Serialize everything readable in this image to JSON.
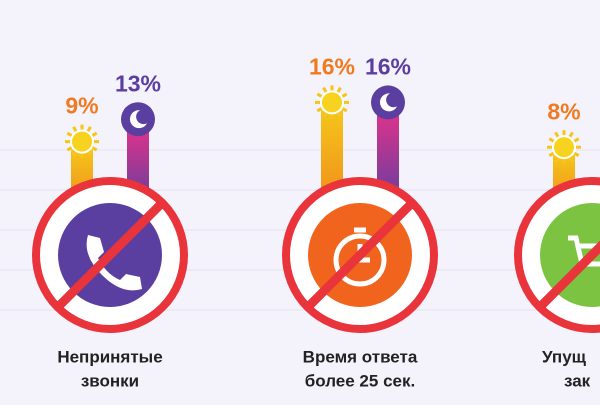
{
  "chart_data": {
    "type": "bar",
    "categories": [
      [
        "Непринятые",
        "звонки"
      ],
      [
        "Время ответа",
        "более 25 сек."
      ],
      [
        "Упущ",
        "зак"
      ]
    ],
    "series": [
      {
        "color": "#f07a20",
        "values": [
          9,
          16,
          8
        ],
        "value_labels": [
          "9%",
          "16%",
          "8%"
        ]
      },
      {
        "color": "#5b3fa0",
        "values": [
          13,
          16,
          null
        ],
        "value_labels": [
          "13%",
          "16%",
          null
        ]
      }
    ]
  }
}
